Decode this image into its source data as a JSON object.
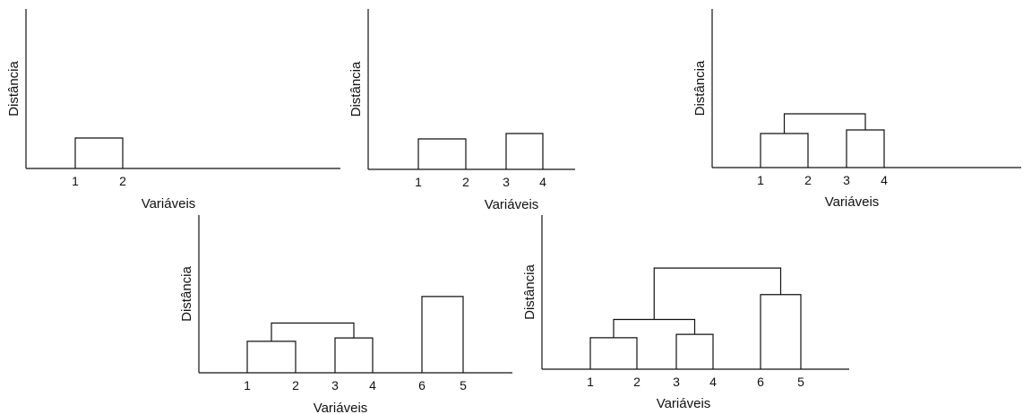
{
  "y_label": "Distância",
  "x_label": "Variáveis",
  "panels": [
    {
      "leaves": [
        "1",
        "2"
      ],
      "merges": [
        {
          "a": 0,
          "b": 1,
          "h": 0.17
        }
      ]
    },
    {
      "leaves": [
        "1",
        "2",
        "3",
        "4"
      ],
      "merges": [
        {
          "a": 0,
          "b": 1,
          "h": 0.17
        },
        {
          "a": 2,
          "b": 3,
          "h": 0.2
        }
      ]
    },
    {
      "leaves": [
        "1",
        "2",
        "3",
        "4"
      ],
      "merges": [
        {
          "a": 0,
          "b": 1,
          "h": 0.19
        },
        {
          "a": 2,
          "b": 3,
          "h": 0.21
        },
        {
          "a": "m0",
          "b": "m1",
          "h": 0.3
        }
      ]
    },
    {
      "leaves": [
        "1",
        "2",
        "3",
        "4",
        "6",
        "5"
      ],
      "merges": [
        {
          "a": 0,
          "b": 1,
          "h": 0.19
        },
        {
          "a": 2,
          "b": 3,
          "h": 0.21
        },
        {
          "a": "m0",
          "b": "m1",
          "h": 0.3
        },
        {
          "a": 4,
          "b": 5,
          "h": 0.46
        }
      ]
    },
    {
      "leaves": [
        "1",
        "2",
        "3",
        "4",
        "6",
        "5"
      ],
      "merges": [
        {
          "a": 0,
          "b": 1,
          "h": 0.19
        },
        {
          "a": 2,
          "b": 3,
          "h": 0.21
        },
        {
          "a": "m0",
          "b": "m1",
          "h": 0.3
        },
        {
          "a": 4,
          "b": 5,
          "h": 0.45
        },
        {
          "a": "m2",
          "b": "m3",
          "h": 0.61
        }
      ]
    }
  ]
}
